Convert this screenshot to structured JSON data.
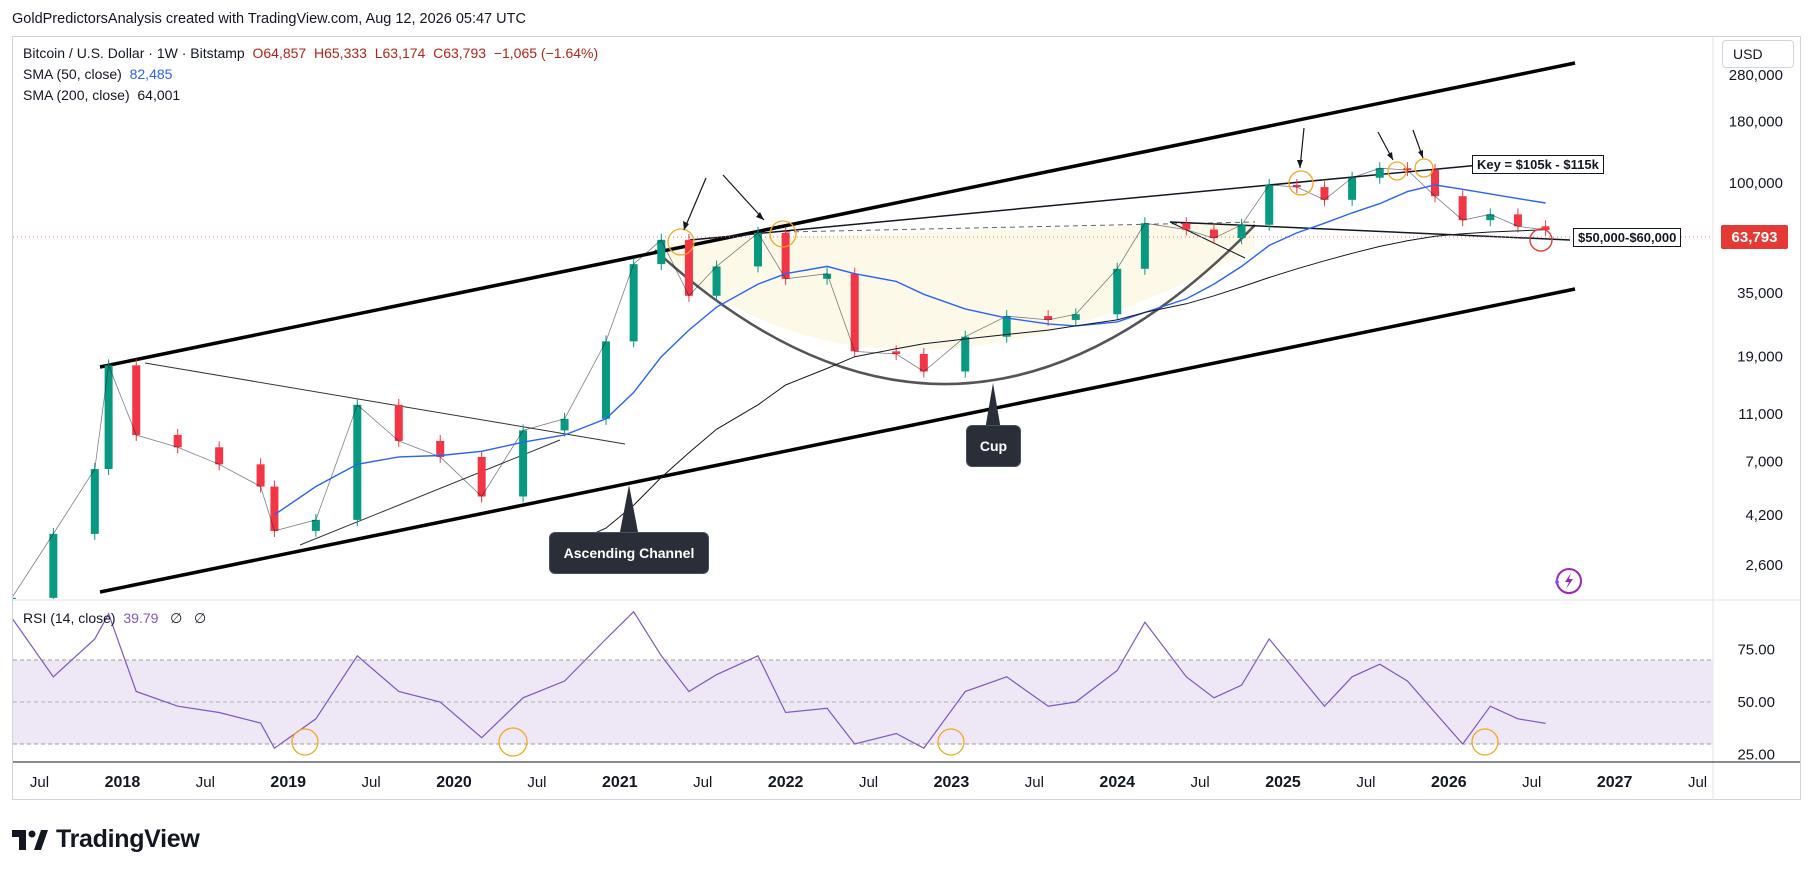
{
  "header": {
    "attribution": "GoldPredictorsAnalysis created with TradingView.com, Aug 12, 2026 05:47 UTC"
  },
  "legend": {
    "symbol": "Bitcoin / U.S. Dollar · 1W · Bitstamp",
    "open": "O64,857",
    "high": "H65,333",
    "low": "L63,174",
    "close": "C63,793",
    "change": "−1,065 (−1.64%)",
    "sma50_label": "SMA (50, close)",
    "sma50_value": "82,485",
    "sma200_label": "SMA (200, close)",
    "sma200_value": "64,001",
    "rsi_label": "RSI (14, close)",
    "rsi_value": "39.79",
    "rsi_extra1": "∅",
    "rsi_extra2": "∅"
  },
  "price_scale": {
    "currency": "USD",
    "last_price": "63,793",
    "ticks": [
      "280,000",
      "180,000",
      "100,000",
      "35,000",
      "19,000",
      "11,000",
      "7,000",
      "4,200",
      "2,600"
    ],
    "rsi_ticks": [
      "75.00",
      "50.00",
      "25.00"
    ]
  },
  "time_axis": [
    "Jul",
    "2018",
    "Jul",
    "2019",
    "Jul",
    "2020",
    "Jul",
    "2021",
    "Jul",
    "2022",
    "Jul",
    "2023",
    "Jul",
    "2024",
    "Jul",
    "2025",
    "Jul",
    "2026",
    "Jul",
    "2027",
    "Jul"
  ],
  "annotations": {
    "ascending_channel": "Ascending Channel",
    "cup": "Cup",
    "key_zone": "Key = $105k - $115k",
    "support_zone": "$50,000-$60,000"
  },
  "footer": {
    "brand": "TradingView"
  },
  "colors": {
    "up_candle": "#089981",
    "down_candle": "#f23645",
    "sma50": "#2962ff",
    "sma200": "#131722",
    "rsi_line": "#7e57c2",
    "rsi_band": "#ede7f6",
    "last_price_bg": "#e53935",
    "highlight_circle": "#f5a623",
    "callout_bg": "#2a2e39"
  },
  "chart_data": [
    {
      "type": "line",
      "title": "Bitcoin / U.S. Dollar · 1W · Bitstamp",
      "scale": "log",
      "ylim": [
        1800,
        380000
      ],
      "x": [
        "2017-05",
        "2017-08",
        "2017-11",
        "2017-12",
        "2018-02",
        "2018-05",
        "2018-08",
        "2018-11",
        "2018-12",
        "2019-03",
        "2019-06",
        "2019-09",
        "2019-12",
        "2020-03",
        "2020-06",
        "2020-09",
        "2020-12",
        "2021-02",
        "2021-04",
        "2021-06",
        "2021-08",
        "2021-11",
        "2022-01",
        "2022-04",
        "2022-06",
        "2022-09",
        "2022-11",
        "2023-02",
        "2023-05",
        "2023-08",
        "2023-10",
        "2024-01",
        "2024-03",
        "2024-06",
        "2024-08",
        "2024-10",
        "2024-12",
        "2025-02",
        "2025-04",
        "2025-06",
        "2025-08",
        "2025-10",
        "2025-12",
        "2026-02",
        "2026-04",
        "2026-06",
        "2026-08"
      ],
      "series": [
        {
          "name": "Bitcoin / U.S. Dollar",
          "values": [
            1900,
            3500,
            6500,
            17500,
            9000,
            8000,
            6800,
            5500,
            3600,
            4000,
            12000,
            8500,
            7300,
            5000,
            9400,
            10500,
            22000,
            46000,
            58000,
            34000,
            45000,
            62000,
            40000,
            42000,
            20000,
            19500,
            16500,
            23000,
            28000,
            27000,
            28500,
            44000,
            68000,
            64000,
            59000,
            67000,
            98000,
            96000,
            85000,
            105000,
            115000,
            113000,
            88000,
            70000,
            74000,
            66000,
            63793
          ]
        },
        {
          "name": "SMA (50, close)",
          "values": [
            null,
            null,
            null,
            null,
            null,
            null,
            null,
            null,
            4200,
            5500,
            6800,
            7300,
            7400,
            7700,
            8400,
            9000,
            10500,
            13500,
            19000,
            24500,
            30500,
            38000,
            42000,
            45000,
            42000,
            39000,
            34500,
            30000,
            27500,
            26000,
            25500,
            26500,
            29000,
            33000,
            38000,
            45000,
            55000,
            62000,
            68000,
            75000,
            82000,
            92000,
            98000,
            94000,
            90000,
            86000,
            82485
          ]
        },
        {
          "name": "SMA (200, close)",
          "values": [
            null,
            null,
            null,
            null,
            null,
            null,
            null,
            null,
            null,
            null,
            null,
            null,
            null,
            null,
            null,
            3100,
            3700,
            4600,
            6000,
            7600,
            9500,
            12000,
            14500,
            17000,
            19000,
            20500,
            21500,
            22500,
            23500,
            24500,
            25500,
            27000,
            29000,
            31500,
            34000,
            37000,
            40500,
            44000,
            47500,
            51000,
            54500,
            57500,
            60000,
            61500,
            62500,
            63200,
            64001
          ]
        }
      ]
    },
    {
      "type": "line",
      "title": "RSI (14, close)",
      "ylim": [
        20,
        100
      ],
      "x": [
        "2017-05",
        "2017-08",
        "2017-11",
        "2017-12",
        "2018-02",
        "2018-05",
        "2018-08",
        "2018-11",
        "2018-12",
        "2019-03",
        "2019-06",
        "2019-09",
        "2019-12",
        "2020-03",
        "2020-06",
        "2020-09",
        "2020-12",
        "2021-02",
        "2021-04",
        "2021-06",
        "2021-08",
        "2021-11",
        "2022-01",
        "2022-04",
        "2022-06",
        "2022-09",
        "2022-11",
        "2023-02",
        "2023-05",
        "2023-08",
        "2023-10",
        "2024-01",
        "2024-03",
        "2024-06",
        "2024-08",
        "2024-10",
        "2024-12",
        "2025-02",
        "2025-04",
        "2025-06",
        "2025-08",
        "2025-10",
        "2025-12",
        "2026-02",
        "2026-04",
        "2026-06",
        "2026-08"
      ],
      "series": [
        {
          "name": "RSI (14, close)",
          "values": [
            90,
            62,
            80,
            92,
            55,
            48,
            45,
            40,
            28,
            42,
            72,
            55,
            50,
            33,
            52,
            60,
            80,
            93,
            72,
            55,
            63,
            72,
            45,
            47,
            30,
            35,
            28,
            55,
            62,
            48,
            50,
            65,
            88,
            62,
            52,
            58,
            80,
            64,
            48,
            62,
            68,
            60,
            45,
            30,
            48,
            42,
            39.79
          ]
        }
      ]
    }
  ]
}
